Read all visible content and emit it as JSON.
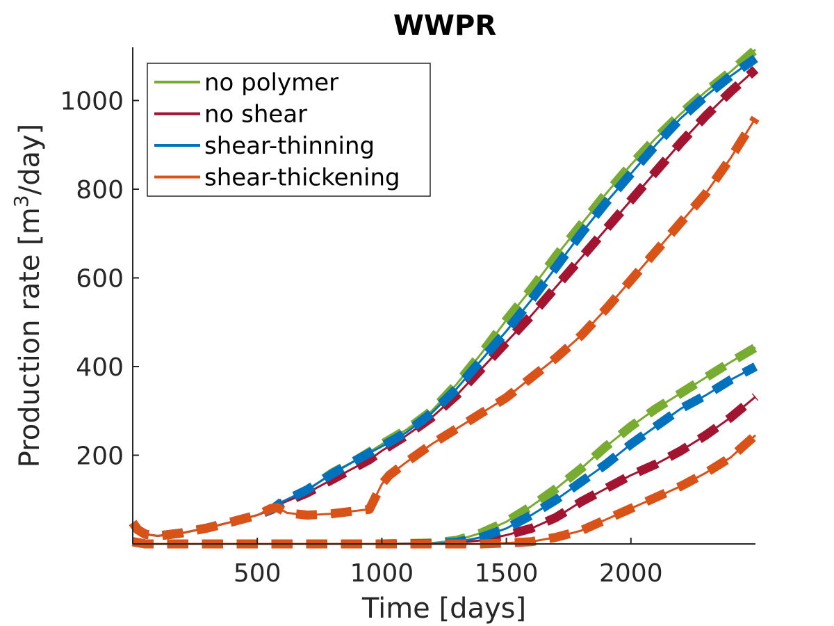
{
  "chart_data": {
    "type": "line",
    "title": "WWPR",
    "xlabel": "Time [days]",
    "ylabel_main": "Production rate [m",
    "ylabel_sup": "3",
    "ylabel_end": "/day]",
    "xlim": [
      0,
      2500
    ],
    "ylim": [
      0,
      1120
    ],
    "xticks": [
      500,
      1000,
      1500,
      2000
    ],
    "yticks": [
      200,
      400,
      600,
      800,
      1000
    ],
    "legend_position": "top-left",
    "series": [
      {
        "name": "no polymer",
        "color": "#77AC30",
        "lines": [
          [
            [
              0,
              48
            ],
            [
              20,
              32
            ],
            [
              50,
              22
            ],
            [
              100,
              18
            ],
            [
              200,
              25
            ],
            [
              300,
              36
            ],
            [
              400,
              50
            ],
            [
              500,
              65
            ],
            [
              560,
              78
            ],
            [
              600,
              95
            ],
            [
              700,
              120
            ],
            [
              800,
              160
            ],
            [
              900,
              190
            ],
            [
              1000,
              225
            ],
            [
              1100,
              258
            ],
            [
              1200,
              300
            ],
            [
              1300,
              360
            ],
            [
              1400,
              430
            ],
            [
              1500,
              505
            ],
            [
              1600,
              575
            ],
            [
              1700,
              650
            ],
            [
              1800,
              720
            ],
            [
              1900,
              790
            ],
            [
              2000,
              855
            ],
            [
              2100,
              915
            ],
            [
              2200,
              970
            ],
            [
              2300,
              1020
            ],
            [
              2400,
              1065
            ],
            [
              2500,
              1115
            ]
          ],
          [
            [
              0,
              5
            ],
            [
              50,
              0
            ],
            [
              200,
              0
            ],
            [
              500,
              0
            ],
            [
              1000,
              0
            ],
            [
              1200,
              2
            ],
            [
              1300,
              8
            ],
            [
              1400,
              25
            ],
            [
              1500,
              50
            ],
            [
              1600,
              85
            ],
            [
              1700,
              125
            ],
            [
              1800,
              170
            ],
            [
              1900,
              220
            ],
            [
              2000,
              265
            ],
            [
              2100,
              305
            ],
            [
              2200,
              340
            ],
            [
              2300,
              375
            ],
            [
              2400,
              410
            ],
            [
              2500,
              443
            ]
          ]
        ]
      },
      {
        "name": "no shear",
        "color": "#A2142F",
        "lines": [
          [
            [
              0,
              48
            ],
            [
              20,
              32
            ],
            [
              50,
              22
            ],
            [
              100,
              18
            ],
            [
              200,
              25
            ],
            [
              300,
              36
            ],
            [
              400,
              50
            ],
            [
              500,
              65
            ],
            [
              560,
              78
            ],
            [
              600,
              92
            ],
            [
              700,
              115
            ],
            [
              800,
              145
            ],
            [
              900,
              175
            ],
            [
              950,
              190
            ],
            [
              1000,
              210
            ],
            [
              1100,
              245
            ],
            [
              1200,
              285
            ],
            [
              1300,
              335
            ],
            [
              1400,
              395
            ],
            [
              1500,
              455
            ],
            [
              1600,
              515
            ],
            [
              1700,
              580
            ],
            [
              1800,
              645
            ],
            [
              1900,
              710
            ],
            [
              2000,
              775
            ],
            [
              2100,
              840
            ],
            [
              2200,
              905
            ],
            [
              2300,
              965
            ],
            [
              2400,
              1020
            ],
            [
              2500,
              1070
            ]
          ],
          [
            [
              0,
              5
            ],
            [
              50,
              0
            ],
            [
              200,
              0
            ],
            [
              500,
              0
            ],
            [
              1000,
              0
            ],
            [
              1200,
              1
            ],
            [
              1300,
              3
            ],
            [
              1400,
              8
            ],
            [
              1500,
              20
            ],
            [
              1600,
              35
            ],
            [
              1700,
              60
            ],
            [
              1800,
              95
            ],
            [
              1900,
              125
            ],
            [
              2000,
              155
            ],
            [
              2100,
              180
            ],
            [
              2200,
              210
            ],
            [
              2300,
              245
            ],
            [
              2400,
              285
            ],
            [
              2500,
              332
            ]
          ]
        ]
      },
      {
        "name": "shear-thinning",
        "color": "#0072BD",
        "lines": [
          [
            [
              0,
              48
            ],
            [
              20,
              32
            ],
            [
              50,
              22
            ],
            [
              100,
              18
            ],
            [
              200,
              25
            ],
            [
              300,
              36
            ],
            [
              400,
              50
            ],
            [
              500,
              65
            ],
            [
              560,
              78
            ],
            [
              600,
              95
            ],
            [
              700,
              122
            ],
            [
              800,
              158
            ],
            [
              900,
              190
            ],
            [
              1000,
              220
            ],
            [
              1100,
              252
            ],
            [
              1200,
              295
            ],
            [
              1300,
              350
            ],
            [
              1400,
              415
            ],
            [
              1500,
              480
            ],
            [
              1600,
              550
            ],
            [
              1700,
              625
            ],
            [
              1800,
              700
            ],
            [
              1900,
              770
            ],
            [
              2000,
              835
            ],
            [
              2100,
              900
            ],
            [
              2200,
              960
            ],
            [
              2300,
              1010
            ],
            [
              2400,
              1055
            ],
            [
              2500,
              1095
            ]
          ],
          [
            [
              0,
              5
            ],
            [
              50,
              0
            ],
            [
              200,
              0
            ],
            [
              500,
              0
            ],
            [
              1000,
              0
            ],
            [
              1200,
              1
            ],
            [
              1300,
              4
            ],
            [
              1400,
              15
            ],
            [
              1500,
              35
            ],
            [
              1600,
              65
            ],
            [
              1700,
              100
            ],
            [
              1800,
              140
            ],
            [
              1900,
              180
            ],
            [
              2000,
              225
            ],
            [
              2100,
              265
            ],
            [
              2200,
              305
            ],
            [
              2300,
              335
            ],
            [
              2400,
              370
            ],
            [
              2500,
              400
            ]
          ]
        ]
      },
      {
        "name": "shear-thickening",
        "color": "#D95319",
        "lines": [
          [
            [
              0,
              48
            ],
            [
              20,
              32
            ],
            [
              50,
              22
            ],
            [
              100,
              18
            ],
            [
              200,
              25
            ],
            [
              300,
              36
            ],
            [
              400,
              50
            ],
            [
              500,
              65
            ],
            [
              555,
              80
            ],
            [
              580,
              82
            ],
            [
              620,
              70
            ],
            [
              700,
              65
            ],
            [
              800,
              68
            ],
            [
              900,
              75
            ],
            [
              950,
              78
            ],
            [
              1000,
              135
            ],
            [
              1030,
              155
            ],
            [
              1100,
              185
            ],
            [
              1200,
              225
            ],
            [
              1300,
              260
            ],
            [
              1400,
              295
            ],
            [
              1500,
              330
            ],
            [
              1600,
              375
            ],
            [
              1700,
              420
            ],
            [
              1800,
              470
            ],
            [
              1900,
              530
            ],
            [
              2000,
              595
            ],
            [
              2100,
              660
            ],
            [
              2200,
              725
            ],
            [
              2300,
              790
            ],
            [
              2400,
              870
            ],
            [
              2500,
              960
            ]
          ],
          [
            [
              0,
              5
            ],
            [
              50,
              0
            ],
            [
              200,
              0
            ],
            [
              500,
              0
            ],
            [
              1000,
              0
            ],
            [
              1200,
              0
            ],
            [
              1400,
              0
            ],
            [
              1500,
              2
            ],
            [
              1600,
              5
            ],
            [
              1700,
              15
            ],
            [
              1800,
              30
            ],
            [
              1900,
              55
            ],
            [
              2000,
              80
            ],
            [
              2100,
              105
            ],
            [
              2200,
              130
            ],
            [
              2300,
              160
            ],
            [
              2400,
              195
            ],
            [
              2500,
              245
            ]
          ]
        ]
      }
    ]
  }
}
